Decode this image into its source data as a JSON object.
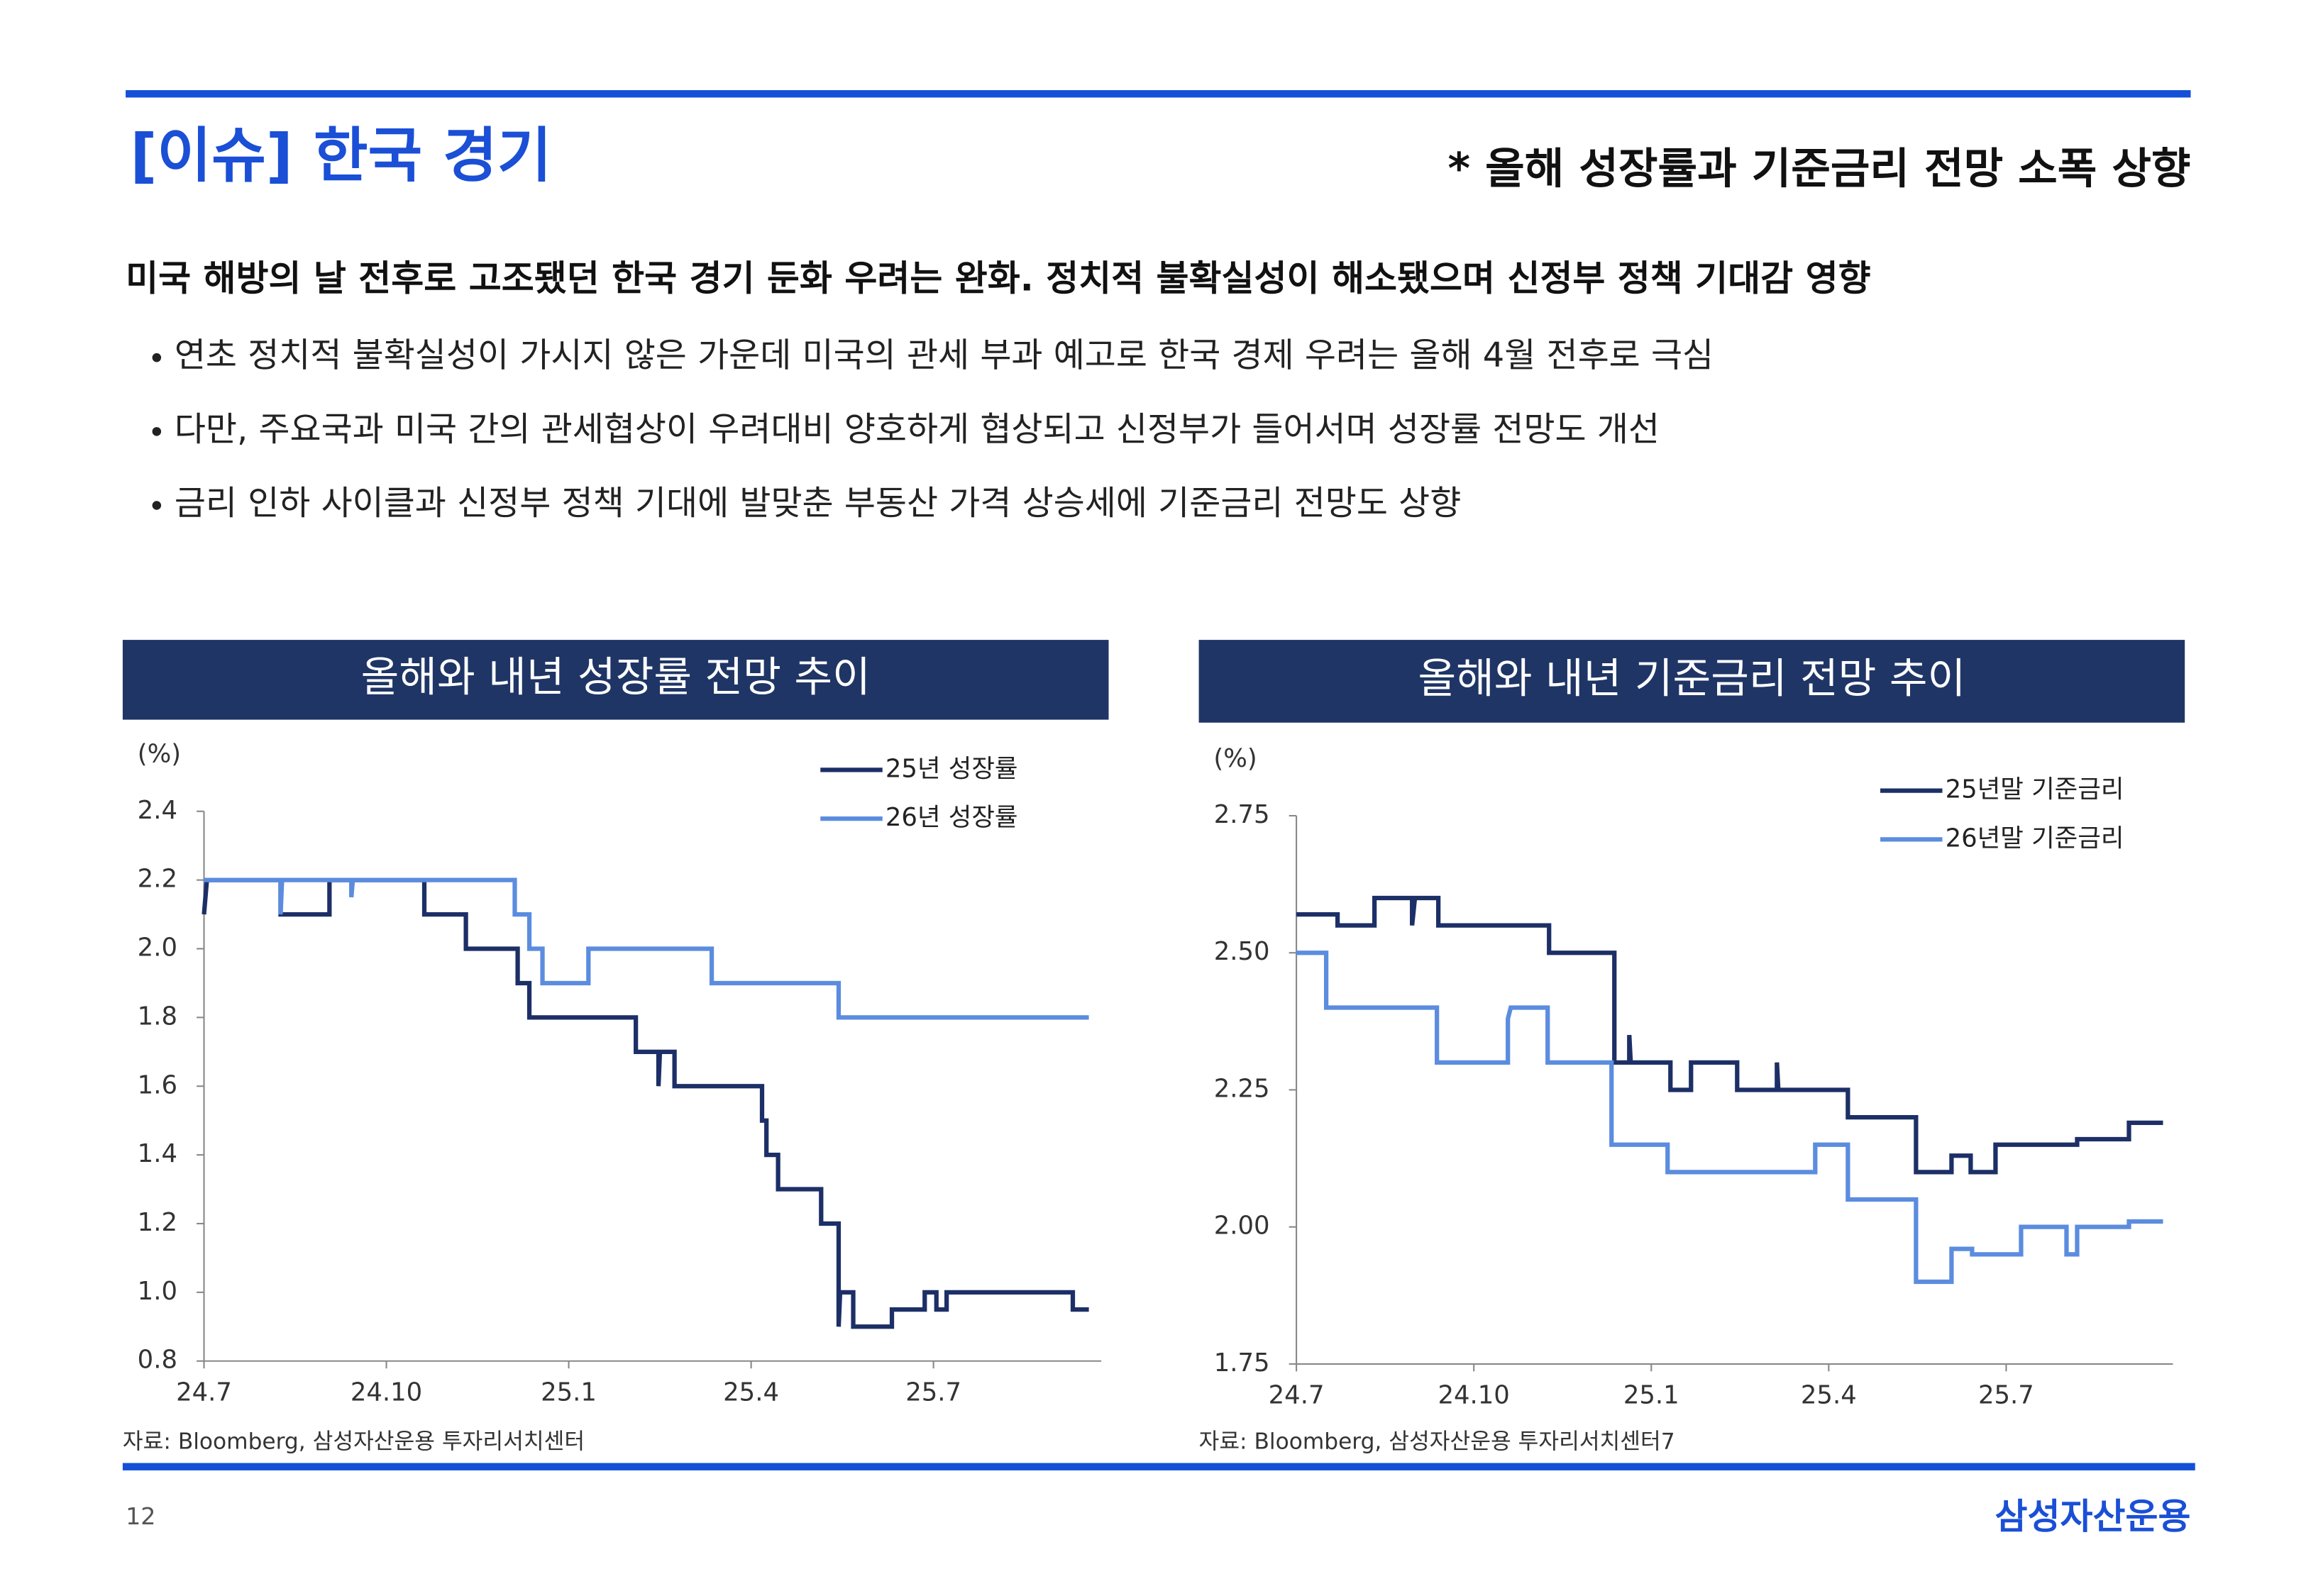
{
  "header": {
    "title": "[이슈] 한국 경기",
    "subtitle": "* 올해 성장률과 기준금리 전망 소폭 상향"
  },
  "headline": "미국 해방의 날 전후로 고조됐던 한국 경기 둔화 우려는 완화. 정치적 불확실성이 해소됐으며 신정부 정책 기대감 영향",
  "bullets": [
    "연초 정치적 불확실성이 가시지 않은 가운데 미국의 관세 부과 예고로 한국 경제 우려는 올해 4월 전후로 극심",
    "다만, 주요국과 미국 간의 관세협상이 우려대비 양호하게 협상되고 신정부가 들어서며 성장률 전망도 개선",
    "금리 인하 사이클과 신정부 정책 기대에 발맞춘 부동산 가격 상승세에 기준금리 전망도 상향"
  ],
  "chart_data": [
    {
      "type": "line",
      "title": "올해와 내년 성장률 전망 추이",
      "y_unit": "(%)",
      "source": "자료: Bloomberg, 삼성자산운용 투자리서치센터",
      "legend": "upper right",
      "xlim": [
        2024.5,
        2025.73
      ],
      "xticks": [
        {
          "value": 2024.5,
          "label": "24.7"
        },
        {
          "value": 2024.75,
          "label": "24.10"
        },
        {
          "value": 2025.0,
          "label": "25.1"
        },
        {
          "value": 2025.25,
          "label": "25.4"
        },
        {
          "value": 2025.5,
          "label": "25.7"
        }
      ],
      "ylim": [
        0.8,
        2.4
      ],
      "yticks": [
        0.8,
        {
          "value": 1.0,
          "label": "1.0"
        },
        1.2,
        1.4,
        1.6,
        1.8,
        {
          "value": 2.0,
          "label": "2.0"
        },
        2.2,
        2.4
      ],
      "series": [
        {
          "name": "25년 성장률",
          "color": "#1c2f66",
          "x": [
            2024.5,
            2024.504,
            2024.605,
            2024.605,
            2024.672,
            2024.672,
            2024.802,
            2024.802,
            2024.859,
            2024.859,
            2024.93,
            2024.93,
            2024.946,
            2024.946,
            2025.092,
            2025.092,
            2025.123,
            2025.123,
            2025.125,
            2025.145,
            2025.145,
            2025.265,
            2025.265,
            2025.271,
            2025.271,
            2025.287,
            2025.287,
            2025.346,
            2025.346,
            2025.37,
            2025.37,
            2025.372,
            2025.39,
            2025.39,
            2025.443,
            2025.443,
            2025.488,
            2025.488,
            2025.504,
            2025.504,
            2025.518,
            2025.518,
            2025.691,
            2025.691,
            2025.713
          ],
          "values": [
            2.1,
            2.2,
            2.2,
            2.1,
            2.1,
            2.2,
            2.2,
            2.1,
            2.1,
            2.0,
            2.0,
            1.9,
            1.9,
            1.8,
            1.8,
            1.7,
            1.7,
            1.6,
            1.7,
            1.7,
            1.6,
            1.6,
            1.5,
            1.5,
            1.4,
            1.4,
            1.3,
            1.3,
            1.2,
            1.2,
            0.9,
            1.0,
            1.0,
            0.9,
            0.9,
            0.95,
            0.95,
            1.0,
            1.0,
            0.95,
            0.95,
            1.0,
            1.0,
            0.95,
            0.95
          ]
        },
        {
          "name": "26년 성장률",
          "color": "#5b8cdf",
          "x": [
            2024.5,
            2024.605,
            2024.605,
            2024.607,
            2024.702,
            2024.702,
            2024.704,
            2024.926,
            2024.926,
            2024.946,
            2024.946,
            2024.964,
            2024.964,
            2025.027,
            2025.027,
            2025.196,
            2025.196,
            2025.37,
            2025.37,
            2025.713
          ],
          "values": [
            2.2,
            2.2,
            2.1,
            2.2,
            2.2,
            2.15,
            2.2,
            2.2,
            2.1,
            2.1,
            2.0,
            2.0,
            1.9,
            1.9,
            2.0,
            2.0,
            1.9,
            1.9,
            1.8,
            1.8
          ]
        }
      ]
    },
    {
      "type": "line",
      "title": "올해와 내년 기준금리 전망 추이",
      "y_unit": "(%)",
      "source": "자료: Bloomberg, 삼성자산운용 투자리서치센터7",
      "legend": "upper right",
      "xlim": [
        2024.5,
        2025.735
      ],
      "xticks": [
        {
          "value": 2024.5,
          "label": "24.7"
        },
        {
          "value": 2024.75,
          "label": "24.10"
        },
        {
          "value": 2025.0,
          "label": "25.1"
        },
        {
          "value": 2025.25,
          "label": "25.4"
        },
        {
          "value": 2025.5,
          "label": "25.7"
        }
      ],
      "ylim": [
        1.75,
        2.75
      ],
      "yticks": [
        1.75,
        {
          "value": 2.0,
          "label": "2.00"
        },
        2.25,
        {
          "value": 2.5,
          "label": "2.50"
        },
        2.75
      ],
      "series": [
        {
          "name": "25년말 기준금리",
          "color": "#1c2f66",
          "x": [
            2024.5,
            2024.558,
            2024.558,
            2024.61,
            2024.61,
            2024.663,
            2024.663,
            2024.667,
            2024.7,
            2024.7,
            2024.856,
            2024.856,
            2024.948,
            2024.948,
            2024.969,
            2024.969,
            2024.971,
            2025.027,
            2025.027,
            2025.056,
            2025.056,
            2025.121,
            2025.121,
            2025.177,
            2025.177,
            2025.179,
            2025.277,
            2025.277,
            2025.373,
            2025.373,
            2025.423,
            2025.423,
            2025.45,
            2025.45,
            2025.485,
            2025.485,
            2025.6,
            2025.6,
            2025.673,
            2025.673,
            2025.721
          ],
          "values": [
            2.57,
            2.57,
            2.55,
            2.55,
            2.6,
            2.6,
            2.55,
            2.6,
            2.6,
            2.55,
            2.55,
            2.5,
            2.5,
            2.3,
            2.3,
            2.35,
            2.3,
            2.3,
            2.25,
            2.25,
            2.3,
            2.3,
            2.25,
            2.25,
            2.3,
            2.25,
            2.25,
            2.2,
            2.2,
            2.1,
            2.1,
            2.13,
            2.13,
            2.1,
            2.1,
            2.15,
            2.15,
            2.16,
            2.16,
            2.19,
            2.19
          ]
        },
        {
          "name": "26년말 기준금리",
          "color": "#5b8cdf",
          "x": [
            2024.5,
            2024.542,
            2024.542,
            2024.698,
            2024.698,
            2024.798,
            2024.798,
            2024.802,
            2024.854,
            2024.854,
            2024.944,
            2024.944,
            2025.023,
            2025.023,
            2025.231,
            2025.231,
            2025.277,
            2025.277,
            2025.373,
            2025.373,
            2025.423,
            2025.423,
            2025.452,
            2025.452,
            2025.521,
            2025.521,
            2025.585,
            2025.585,
            2025.6,
            2025.6,
            2025.673,
            2025.673,
            2025.721
          ],
          "values": [
            2.5,
            2.5,
            2.4,
            2.4,
            2.3,
            2.3,
            2.38,
            2.4,
            2.4,
            2.3,
            2.3,
            2.15,
            2.15,
            2.1,
            2.1,
            2.15,
            2.15,
            2.05,
            2.05,
            1.9,
            1.9,
            1.96,
            1.96,
            1.95,
            1.95,
            2.0,
            2.0,
            1.95,
            1.95,
            2.0,
            2.0,
            2.01,
            2.01
          ]
        }
      ]
    }
  ],
  "footer": {
    "page": "12",
    "brand": "삼성자산운용"
  }
}
